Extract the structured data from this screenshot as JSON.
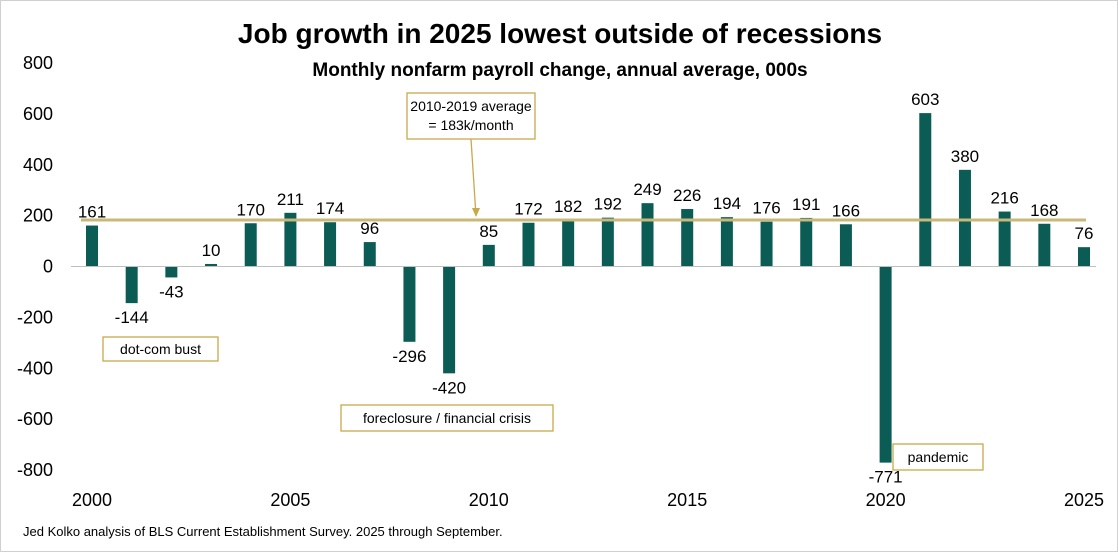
{
  "chart_data": {
    "type": "bar",
    "title": "Job growth in 2025 lowest outside of recessions",
    "subtitle": "Monthly nonfarm payroll change, annual average, 000s",
    "x": [
      2000,
      2001,
      2002,
      2003,
      2004,
      2005,
      2006,
      2007,
      2008,
      2009,
      2010,
      2011,
      2012,
      2013,
      2014,
      2015,
      2016,
      2017,
      2018,
      2019,
      2020,
      2021,
      2022,
      2023,
      2024,
      2025
    ],
    "values": [
      161,
      -144,
      -43,
      10,
      170,
      211,
      174,
      96,
      -296,
      -420,
      85,
      172,
      182,
      192,
      249,
      226,
      194,
      176,
      191,
      166,
      -771,
      603,
      380,
      216,
      168,
      76
    ],
    "x_tick_labels": [
      "2000",
      "2005",
      "2010",
      "2015",
      "2020",
      "2025"
    ],
    "x_tick_values": [
      2000,
      2005,
      2010,
      2015,
      2020,
      2025
    ],
    "y_ticks": [
      800,
      600,
      400,
      200,
      0,
      -200,
      -400,
      -600,
      -800
    ],
    "ylim": [
      -800,
      800
    ],
    "reference_line": {
      "value": 183,
      "label_line1": "2010-2019 average",
      "label_line2": "= 183k/month"
    },
    "annotations": [
      {
        "text": "dot-com bust",
        "near_year": 2001
      },
      {
        "text": "foreclosure / financial crisis",
        "near_year": 2009
      },
      {
        "text": "pandemic",
        "near_year": 2020
      }
    ],
    "bar_color": "#0b5c55",
    "reference_line_color": "#c8b87a",
    "annotation_border_color": "#c8a94a",
    "grid": false,
    "legend": "none"
  },
  "source_note": "Jed Kolko analysis of BLS Current Establishment Survey. 2025 through September."
}
